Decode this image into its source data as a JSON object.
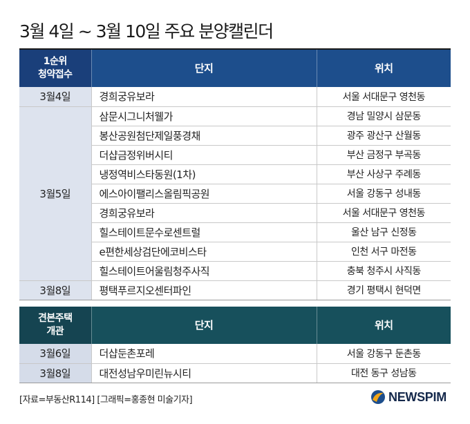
{
  "title": "3월 4일 ~ 3월 10일 주요 분양캘린더",
  "table1": {
    "header": {
      "col1_line1": "1순위",
      "col1_line2": "청약접수",
      "col2": "단지",
      "col3": "위치"
    },
    "rows": [
      {
        "date": "3월4일",
        "name": "경희궁유보라",
        "location": "서울 서대문구 영천동"
      },
      {
        "date": "3월5일",
        "name": "삼문시그니처웰가",
        "location": "경남 밀양시 삼문동"
      },
      {
        "date": "",
        "name": "봉산공원첨단제일풍경채",
        "location": "광주 광산구 산월동"
      },
      {
        "date": "",
        "name": "더샵금정위버시티",
        "location": "부산 금정구 부곡동"
      },
      {
        "date": "",
        "name": "냉정역비스타동원(1차)",
        "location": "부산 사상구 주례동"
      },
      {
        "date": "",
        "name": "에스아이팰리스올림픽공원",
        "location": "서울 강동구 성내동"
      },
      {
        "date": "",
        "name": "경희궁유보라",
        "location": "서울 서대문구 영천동"
      },
      {
        "date": "",
        "name": "힐스테이트문수로센트럴",
        "location": "울산 남구 신정동"
      },
      {
        "date": "",
        "name": "e편한세상검단에코비스타",
        "location": "인천 서구 마전동"
      },
      {
        "date": "",
        "name": "힐스테이트어울림청주사직",
        "location": "충북 청주시 사직동"
      },
      {
        "date": "3월8일",
        "name": "평택푸르지오센터파인",
        "location": "경기 평택시 현덕면"
      }
    ]
  },
  "table2": {
    "header": {
      "col1_line1": "견본주택",
      "col1_line2": "개관",
      "col2": "단지",
      "col3": "위치"
    },
    "rows": [
      {
        "date": "3월6일",
        "name": "더샵둔촌포레",
        "location": "서울 강동구 둔촌동"
      },
      {
        "date": "3월8일",
        "name": "대전성남우미린뉴시티",
        "location": "대전 동구 성남동"
      }
    ]
  },
  "source": "[자료=부동산R114] [그래픽=홍종현 미술기자]",
  "brand": {
    "name": "NEWSPIM",
    "icon": "newspim-logo-icon",
    "logo_colors": [
      "#f2a516",
      "#1d4e8c"
    ]
  }
}
